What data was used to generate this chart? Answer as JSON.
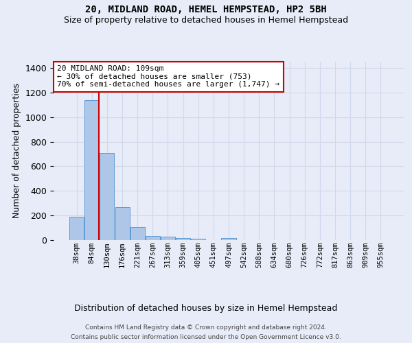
{
  "title1": "20, MIDLAND ROAD, HEMEL HEMPSTEAD, HP2 5BH",
  "title2": "Size of property relative to detached houses in Hemel Hempstead",
  "xlabel": "Distribution of detached houses by size in Hemel Hempstead",
  "ylabel": "Number of detached properties",
  "footer1": "Contains HM Land Registry data © Crown copyright and database right 2024.",
  "footer2": "Contains public sector information licensed under the Open Government Licence v3.0.",
  "bin_labels": [
    "38sqm",
    "84sqm",
    "130sqm",
    "176sqm",
    "221sqm",
    "267sqm",
    "313sqm",
    "359sqm",
    "405sqm",
    "451sqm",
    "497sqm",
    "542sqm",
    "588sqm",
    "634sqm",
    "680sqm",
    "726sqm",
    "772sqm",
    "817sqm",
    "863sqm",
    "909sqm",
    "955sqm"
  ],
  "bar_values": [
    190,
    1140,
    710,
    265,
    107,
    35,
    28,
    15,
    13,
    0,
    15,
    0,
    0,
    0,
    0,
    0,
    0,
    0,
    0,
    0,
    0
  ],
  "bar_color": "#aec6e8",
  "bar_edge_color": "#5b9bd5",
  "grid_color": "#d0d8ec",
  "vline_color": "#cc0000",
  "annotation_text": "20 MIDLAND ROAD: 109sqm\n← 30% of detached houses are smaller (753)\n70% of semi-detached houses are larger (1,747) →",
  "annotation_box_color": "#ffffff",
  "annotation_box_edge": "#cc0000",
  "ylim": [
    0,
    1450
  ],
  "background_color": "#e8ecf8",
  "plot_background": "#e8ecf8",
  "vline_pos": 1.48
}
